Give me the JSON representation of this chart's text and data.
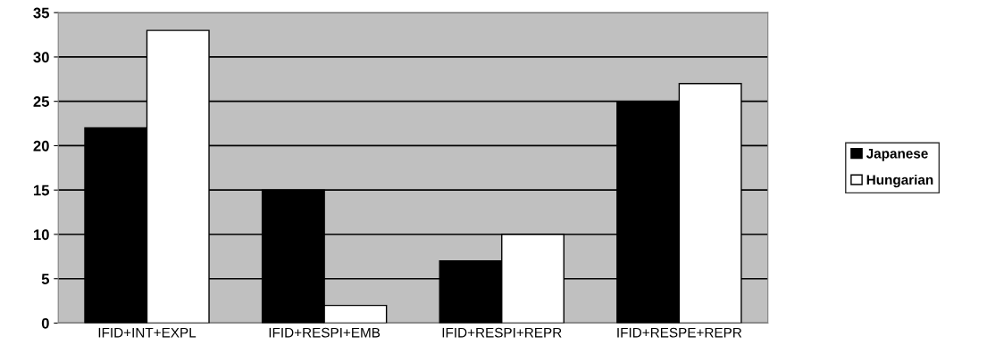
{
  "chart_data": {
    "type": "bar",
    "categories": [
      "IFID+INT+EXPL",
      "IFID+RESPI+EMB",
      "IFID+RESPI+REPR",
      "IFID+RESPE+REPR"
    ],
    "series": [
      {
        "name": "Japanese",
        "color": "#000000",
        "values": [
          22,
          15,
          7,
          25
        ]
      },
      {
        "name": "Hungarian",
        "color": "#ffffff",
        "values": [
          33,
          2,
          10,
          27
        ]
      }
    ],
    "ylim": [
      0,
      35
    ],
    "yticks": [
      0,
      5,
      10,
      15,
      20,
      25,
      30,
      35
    ],
    "grid": "y",
    "legend": "right"
  }
}
